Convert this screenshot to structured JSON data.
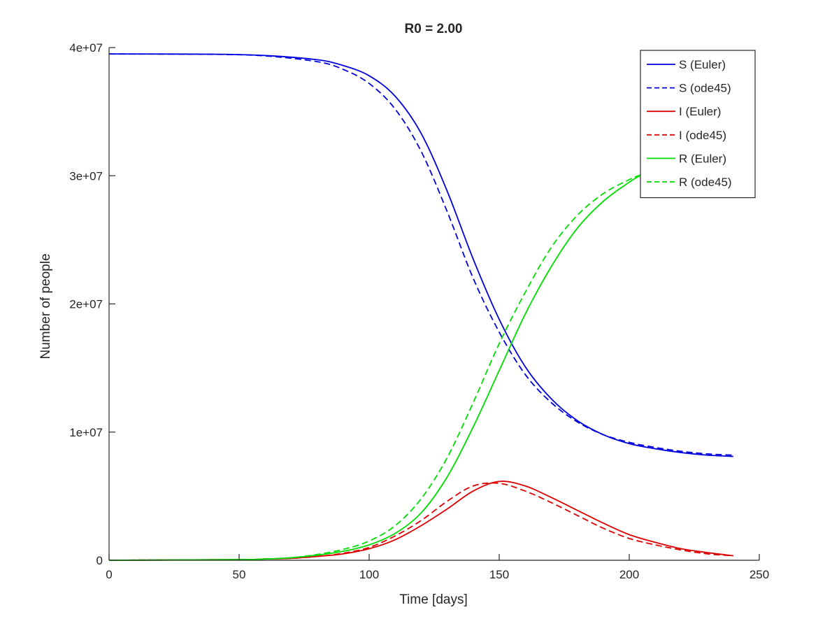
{
  "chart_data": {
    "type": "line",
    "title": "R0 = 2.00",
    "xlabel": "Time [days]",
    "ylabel": "Number of people",
    "xlim": [
      0,
      250
    ],
    "ylim": [
      0,
      40000000
    ],
    "x_ticks": [
      0,
      50,
      100,
      150,
      200,
      250
    ],
    "x_tick_labels": [
      "0",
      "50",
      "100",
      "150",
      "200",
      "250"
    ],
    "y_ticks": [
      0,
      10000000,
      20000000,
      30000000,
      40000000
    ],
    "y_tick_labels": [
      "0",
      "1e+07",
      "2e+07",
      "3e+07",
      "4e+07"
    ],
    "grid": false,
    "legend_position": "top-right",
    "series": [
      {
        "name": "S (Euler)",
        "color": "#0000dd",
        "dash": "solid",
        "x": [
          0,
          40,
          60,
          80,
          90,
          100,
          110,
          120,
          130,
          140,
          150,
          160,
          170,
          180,
          190,
          200,
          210,
          220,
          230,
          240
        ],
        "y": [
          39500000,
          39480000,
          39380000,
          39050000,
          38600000,
          37800000,
          36200000,
          33300000,
          28800000,
          23500000,
          18800000,
          15100000,
          12600000,
          10900000,
          9800000,
          9100000,
          8700000,
          8400000,
          8200000,
          8100000
        ]
      },
      {
        "name": "S (ode45)",
        "color": "#0000dd",
        "dash": "dashed",
        "x": [
          0,
          40,
          60,
          80,
          90,
          100,
          110,
          120,
          130,
          140,
          150,
          160,
          170,
          180,
          190,
          200,
          210,
          220,
          230,
          240
        ],
        "y": [
          39500000,
          39470000,
          39350000,
          38900000,
          38300000,
          37200000,
          35200000,
          31900000,
          27200000,
          22000000,
          17800000,
          14500000,
          12300000,
          10800000,
          9800000,
          9200000,
          8800000,
          8500000,
          8300000,
          8200000
        ]
      },
      {
        "name": "I (Euler)",
        "color": "#dd0000",
        "dash": "solid",
        "x": [
          0,
          50,
          60,
          70,
          80,
          90,
          100,
          110,
          120,
          130,
          140,
          150,
          160,
          170,
          180,
          190,
          200,
          210,
          220,
          230,
          240
        ],
        "y": [
          0,
          50000,
          100000,
          150000,
          300000,
          500000,
          900000,
          1600000,
          2700000,
          4000000,
          5400000,
          6150000,
          5800000,
          4900000,
          3900000,
          2900000,
          2000000,
          1400000,
          900000,
          600000,
          350000
        ]
      },
      {
        "name": "I (ode45)",
        "color": "#dd0000",
        "dash": "dashed",
        "x": [
          0,
          50,
          60,
          70,
          80,
          90,
          100,
          110,
          120,
          130,
          140,
          150,
          160,
          170,
          180,
          190,
          200,
          210,
          220,
          230,
          240
        ],
        "y": [
          0,
          50000,
          100000,
          150000,
          300000,
          550000,
          1000000,
          1900000,
          3100000,
          4600000,
          5800000,
          6000000,
          5400000,
          4500000,
          3500000,
          2500000,
          1700000,
          1200000,
          800000,
          500000,
          350000
        ]
      },
      {
        "name": "R (Euler)",
        "color": "#00dd00",
        "dash": "solid",
        "x": [
          0,
          50,
          60,
          70,
          80,
          90,
          100,
          110,
          120,
          130,
          140,
          150,
          160,
          170,
          180,
          190,
          200,
          205
        ],
        "y": [
          0,
          50000,
          100000,
          200000,
          400000,
          700000,
          1200000,
          2100000,
          3700000,
          6500000,
          10400000,
          14800000,
          19200000,
          22900000,
          25900000,
          28000000,
          29500000,
          30100000
        ]
      },
      {
        "name": "R (ode45)",
        "color": "#00dd00",
        "dash": "dashed",
        "x": [
          0,
          50,
          60,
          70,
          80,
          90,
          100,
          110,
          120,
          130,
          140,
          150,
          160,
          170,
          180,
          190,
          200,
          205
        ],
        "y": [
          0,
          50000,
          100000,
          200000,
          450000,
          850000,
          1500000,
          2700000,
          4800000,
          8000000,
          12300000,
          16900000,
          20900000,
          24400000,
          26900000,
          28600000,
          29700000,
          30100000
        ]
      }
    ]
  }
}
